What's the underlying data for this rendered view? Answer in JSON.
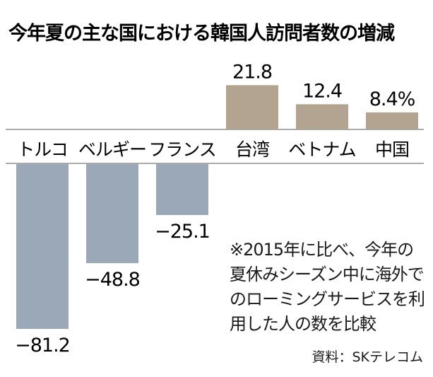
{
  "chart_data": {
    "type": "bar",
    "title": "今年夏の主な国における韓国人訪問者数の増減",
    "categories": [
      "トルコ",
      "ベルギー",
      "フランス",
      "台湾",
      "ベトナム",
      "中国"
    ],
    "values": [
      -81.2,
      -48.8,
      -25.1,
      21.8,
      12.4,
      8.4
    ],
    "value_labels": [
      "−81.2",
      "−48.8",
      "−25.1",
      "21.8",
      "12.4",
      "8.4%"
    ],
    "ylabel": "",
    "xlabel": "",
    "ylim": [
      -81.2,
      21.8
    ],
    "grid": false,
    "legend": "none",
    "colors": {
      "negative": "#9aa8b7",
      "positive": "#b3a391",
      "axis": "#555555"
    }
  },
  "note": "※2015年に比べ、今年の夏休みシーズン中に海外でのローミングサービスを利用した人の数を比較",
  "source": "資料：SKテレコム"
}
